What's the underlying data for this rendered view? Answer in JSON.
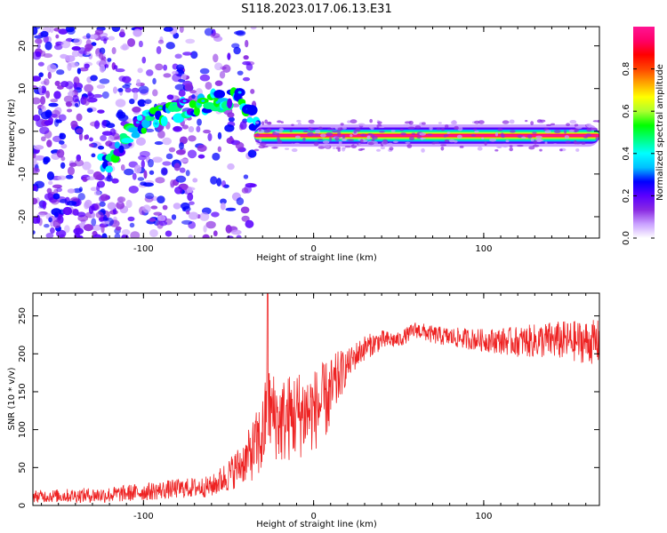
{
  "figure_title": "S118.2023.017.06.13.E31",
  "chart_data": [
    {
      "type": "heatmap",
      "xlabel": "Height of straight line (km)",
      "ylabel": "Frequency (Hz)",
      "xlim": [
        -165,
        168
      ],
      "ylim": [
        -25,
        24.5
      ],
      "xticks": [
        -100,
        0,
        100
      ],
      "yticks": [
        -20,
        -10,
        0,
        10,
        20
      ],
      "grid": false,
      "colorbar": {
        "label": "Normalized spectral amplitude",
        "range": [
          0.0,
          1.0
        ],
        "ticks": [
          "0.0",
          "0.2",
          "0.4",
          "0.6",
          "0.8"
        ],
        "colormap": [
          "#ffffff",
          "#c9a0ff",
          "#8a2be2",
          "#5a00ff",
          "#0000ff",
          "#00bfff",
          "#00ffff",
          "#00ff7f",
          "#00ff00",
          "#adff2f",
          "#ffff00",
          "#ffa500",
          "#ff4500",
          "#ff0000",
          "#ff0066",
          "#ff1493"
        ]
      },
      "features": {
        "signal_band": {
          "x_start": -35,
          "x_end": 168,
          "freq_center": -1.0,
          "freq_halfwidth": 1.2,
          "peak_amplitude": 1.0
        },
        "noise_region": {
          "x_start": -165,
          "x_end": -35,
          "freq_range": [
            -25,
            24.5
          ],
          "amplitude_range": [
            0.05,
            0.7
          ]
        },
        "drift_track": {
          "points": [
            [
              -120,
              -7
            ],
            [
              -110,
              -1
            ],
            [
              -100,
              2
            ],
            [
              -90,
              4
            ],
            [
              -80,
              5
            ],
            [
              -70,
              6
            ],
            [
              -60,
              7
            ],
            [
              -50,
              7
            ],
            [
              -45,
              9
            ],
            [
              -38,
              4
            ],
            [
              -30,
              0
            ]
          ]
        }
      }
    },
    {
      "type": "line",
      "xlabel": "Height of straight line (km)",
      "ylabel": "SNR (10 * v/v)",
      "xlim": [
        -165,
        168
      ],
      "ylim": [
        0,
        280
      ],
      "xticks": [
        -100,
        0,
        100
      ],
      "yticks": [
        0,
        50,
        100,
        150,
        200,
        250
      ],
      "grid": false,
      "series": [
        {
          "color": "#ee2222",
          "envelope": [
            [
              -165,
              12
            ],
            [
              -120,
              14
            ],
            [
              -100,
              18
            ],
            [
              -80,
              22
            ],
            [
              -60,
              25
            ],
            [
              -50,
              40
            ],
            [
              -40,
              60
            ],
            [
              -30,
              90
            ],
            [
              -27,
              130
            ],
            [
              -20,
              110
            ],
            [
              -10,
              120
            ],
            [
              0,
              125
            ],
            [
              10,
              145
            ],
            [
              15,
              170
            ],
            [
              20,
              185
            ],
            [
              25,
              198
            ],
            [
              30,
              208
            ],
            [
              40,
              218
            ],
            [
              50,
              218
            ],
            [
              60,
              232
            ],
            [
              70,
              225
            ],
            [
              80,
              222
            ],
            [
              100,
              218
            ],
            [
              120,
              216
            ],
            [
              140,
              218
            ],
            [
              168,
              215
            ]
          ],
          "noise_amplitude": [
            [
              -165,
              8
            ],
            [
              -60,
              14
            ],
            [
              -40,
              30
            ],
            [
              -30,
              55
            ],
            [
              -10,
              60
            ],
            [
              10,
              50
            ],
            [
              20,
              20
            ],
            [
              50,
              10
            ],
            [
              100,
              15
            ],
            [
              140,
              25
            ],
            [
              168,
              30
            ]
          ],
          "spike": {
            "x": -27,
            "y": 280
          }
        }
      ]
    }
  ]
}
